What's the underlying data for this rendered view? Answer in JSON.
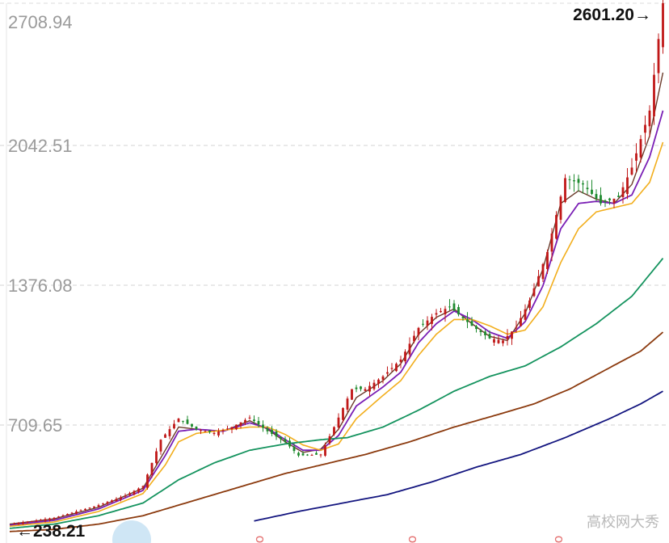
{
  "chart_data": {
    "type": "candlestick",
    "title": "",
    "y_ticks": [
      "2708.94",
      "2042.51",
      "1376.08",
      "709.65"
    ],
    "y_tick_values": [
      2708.94,
      2042.51,
      1376.08,
      709.65
    ],
    "ylim": [
      238.21,
      2708.94
    ],
    "annotations": {
      "high_label": "2601.20→",
      "high_value": 2601.2,
      "low_label": "←238.21",
      "low_value": 238.21
    },
    "legend": "none",
    "grid": "horizontal-dashed",
    "colors": {
      "up": "#c01818",
      "down": "#1e8a2e",
      "ma_fast": "#6b3a2a",
      "ma5": "#7a1fb5",
      "ma10": "#f2ae1c",
      "ma20": "#14935e",
      "ma60": "#8b3a0e",
      "ma120": "#13157f",
      "grid": "#dcdcdc"
    },
    "price_path_keypoints": [
      [
        0,
        240
      ],
      [
        10,
        270
      ],
      [
        20,
        330
      ],
      [
        26,
        375
      ],
      [
        30,
        420
      ],
      [
        34,
        640
      ],
      [
        38,
        740
      ],
      [
        42,
        690
      ],
      [
        46,
        672
      ],
      [
        50,
        700
      ],
      [
        54,
        745
      ],
      [
        58,
        680
      ],
      [
        62,
        630
      ],
      [
        65,
        565
      ],
      [
        70,
        570
      ],
      [
        73,
        700
      ],
      [
        77,
        880
      ],
      [
        80,
        880
      ],
      [
        84,
        940
      ],
      [
        88,
        1020
      ],
      [
        92,
        1170
      ],
      [
        96,
        1240
      ],
      [
        99,
        1270
      ],
      [
        104,
        1180
      ],
      [
        108,
        1120
      ],
      [
        111,
        1110
      ],
      [
        114,
        1175
      ],
      [
        117,
        1300
      ],
      [
        121,
        1530
      ],
      [
        125,
        1880
      ],
      [
        129,
        1850
      ],
      [
        133,
        1760
      ],
      [
        137,
        1790
      ],
      [
        140,
        1930
      ],
      [
        144,
        2200
      ],
      [
        147,
        2708.94
      ]
    ],
    "moving_averages": [
      {
        "name": "MA-fast",
        "points": [
          [
            0,
            240
          ],
          [
            10,
            265
          ],
          [
            20,
            320
          ],
          [
            30,
            410
          ],
          [
            35,
            590
          ],
          [
            38,
            700
          ],
          [
            42,
            690
          ],
          [
            48,
            680
          ],
          [
            54,
            730
          ],
          [
            58,
            690
          ],
          [
            62,
            630
          ],
          [
            66,
            580
          ],
          [
            70,
            595
          ],
          [
            74,
            690
          ],
          [
            78,
            840
          ],
          [
            84,
            920
          ],
          [
            88,
            1000
          ],
          [
            92,
            1140
          ],
          [
            96,
            1220
          ],
          [
            100,
            1260
          ],
          [
            104,
            1190
          ],
          [
            108,
            1130
          ],
          [
            112,
            1110
          ],
          [
            116,
            1240
          ],
          [
            120,
            1450
          ],
          [
            124,
            1760
          ],
          [
            128,
            1820
          ],
          [
            132,
            1780
          ],
          [
            136,
            1760
          ],
          [
            140,
            1850
          ],
          [
            144,
            2080
          ],
          [
            147,
            2380
          ]
        ]
      },
      {
        "name": "MA5",
        "points": [
          [
            0,
            235
          ],
          [
            10,
            258
          ],
          [
            20,
            312
          ],
          [
            30,
            400
          ],
          [
            35,
            565
          ],
          [
            38,
            680
          ],
          [
            42,
            690
          ],
          [
            48,
            680
          ],
          [
            54,
            720
          ],
          [
            58,
            695
          ],
          [
            62,
            640
          ],
          [
            66,
            590
          ],
          [
            70,
            590
          ],
          [
            74,
            660
          ],
          [
            78,
            800
          ],
          [
            84,
            890
          ],
          [
            88,
            960
          ],
          [
            92,
            1100
          ],
          [
            96,
            1190
          ],
          [
            100,
            1250
          ],
          [
            104,
            1210
          ],
          [
            108,
            1150
          ],
          [
            112,
            1120
          ],
          [
            116,
            1200
          ],
          [
            120,
            1370
          ],
          [
            124,
            1640
          ],
          [
            128,
            1760
          ],
          [
            132,
            1770
          ],
          [
            136,
            1760
          ],
          [
            140,
            1800
          ],
          [
            144,
            1980
          ],
          [
            147,
            2200
          ]
        ]
      },
      {
        "name": "MA10",
        "points": [
          [
            0,
            230
          ],
          [
            10,
            250
          ],
          [
            20,
            300
          ],
          [
            30,
            385
          ],
          [
            35,
            520
          ],
          [
            38,
            630
          ],
          [
            42,
            670
          ],
          [
            48,
            685
          ],
          [
            54,
            700
          ],
          [
            58,
            700
          ],
          [
            62,
            665
          ],
          [
            66,
            615
          ],
          [
            70,
            590
          ],
          [
            74,
            620
          ],
          [
            78,
            740
          ],
          [
            84,
            850
          ],
          [
            88,
            920
          ],
          [
            92,
            1040
          ],
          [
            96,
            1140
          ],
          [
            100,
            1210
          ],
          [
            104,
            1210
          ],
          [
            108,
            1180
          ],
          [
            112,
            1140
          ],
          [
            116,
            1160
          ],
          [
            120,
            1270
          ],
          [
            124,
            1480
          ],
          [
            128,
            1640
          ],
          [
            132,
            1720
          ],
          [
            136,
            1740
          ],
          [
            140,
            1760
          ],
          [
            144,
            1860
          ],
          [
            147,
            2050
          ]
        ]
      },
      {
        "name": "MA20",
        "points": [
          [
            0,
            220
          ],
          [
            10,
            240
          ],
          [
            20,
            280
          ],
          [
            30,
            340
          ],
          [
            38,
            450
          ],
          [
            46,
            530
          ],
          [
            54,
            590
          ],
          [
            62,
            620
          ],
          [
            70,
            640
          ],
          [
            76,
            650
          ],
          [
            84,
            700
          ],
          [
            92,
            780
          ],
          [
            100,
            870
          ],
          [
            108,
            940
          ],
          [
            116,
            990
          ],
          [
            124,
            1080
          ],
          [
            132,
            1190
          ],
          [
            140,
            1320
          ],
          [
            147,
            1500
          ]
        ]
      },
      {
        "name": "MA60",
        "points": [
          [
            0,
            205
          ],
          [
            10,
            215
          ],
          [
            20,
            240
          ],
          [
            30,
            280
          ],
          [
            38,
            330
          ],
          [
            46,
            380
          ],
          [
            54,
            430
          ],
          [
            62,
            480
          ],
          [
            70,
            520
          ],
          [
            80,
            570
          ],
          [
            90,
            630
          ],
          [
            100,
            700
          ],
          [
            110,
            760
          ],
          [
            118,
            810
          ],
          [
            126,
            880
          ],
          [
            134,
            970
          ],
          [
            142,
            1060
          ],
          [
            147,
            1150
          ]
        ]
      },
      {
        "name": "MA120",
        "points": [
          [
            55,
            255
          ],
          [
            65,
            300
          ],
          [
            75,
            340
          ],
          [
            85,
            380
          ],
          [
            95,
            440
          ],
          [
            105,
            510
          ],
          [
            115,
            570
          ],
          [
            125,
            650
          ],
          [
            135,
            740
          ],
          [
            142,
            810
          ],
          [
            147,
            870
          ]
        ]
      }
    ]
  },
  "watermark": {
    "text": "高校网大秀"
  }
}
